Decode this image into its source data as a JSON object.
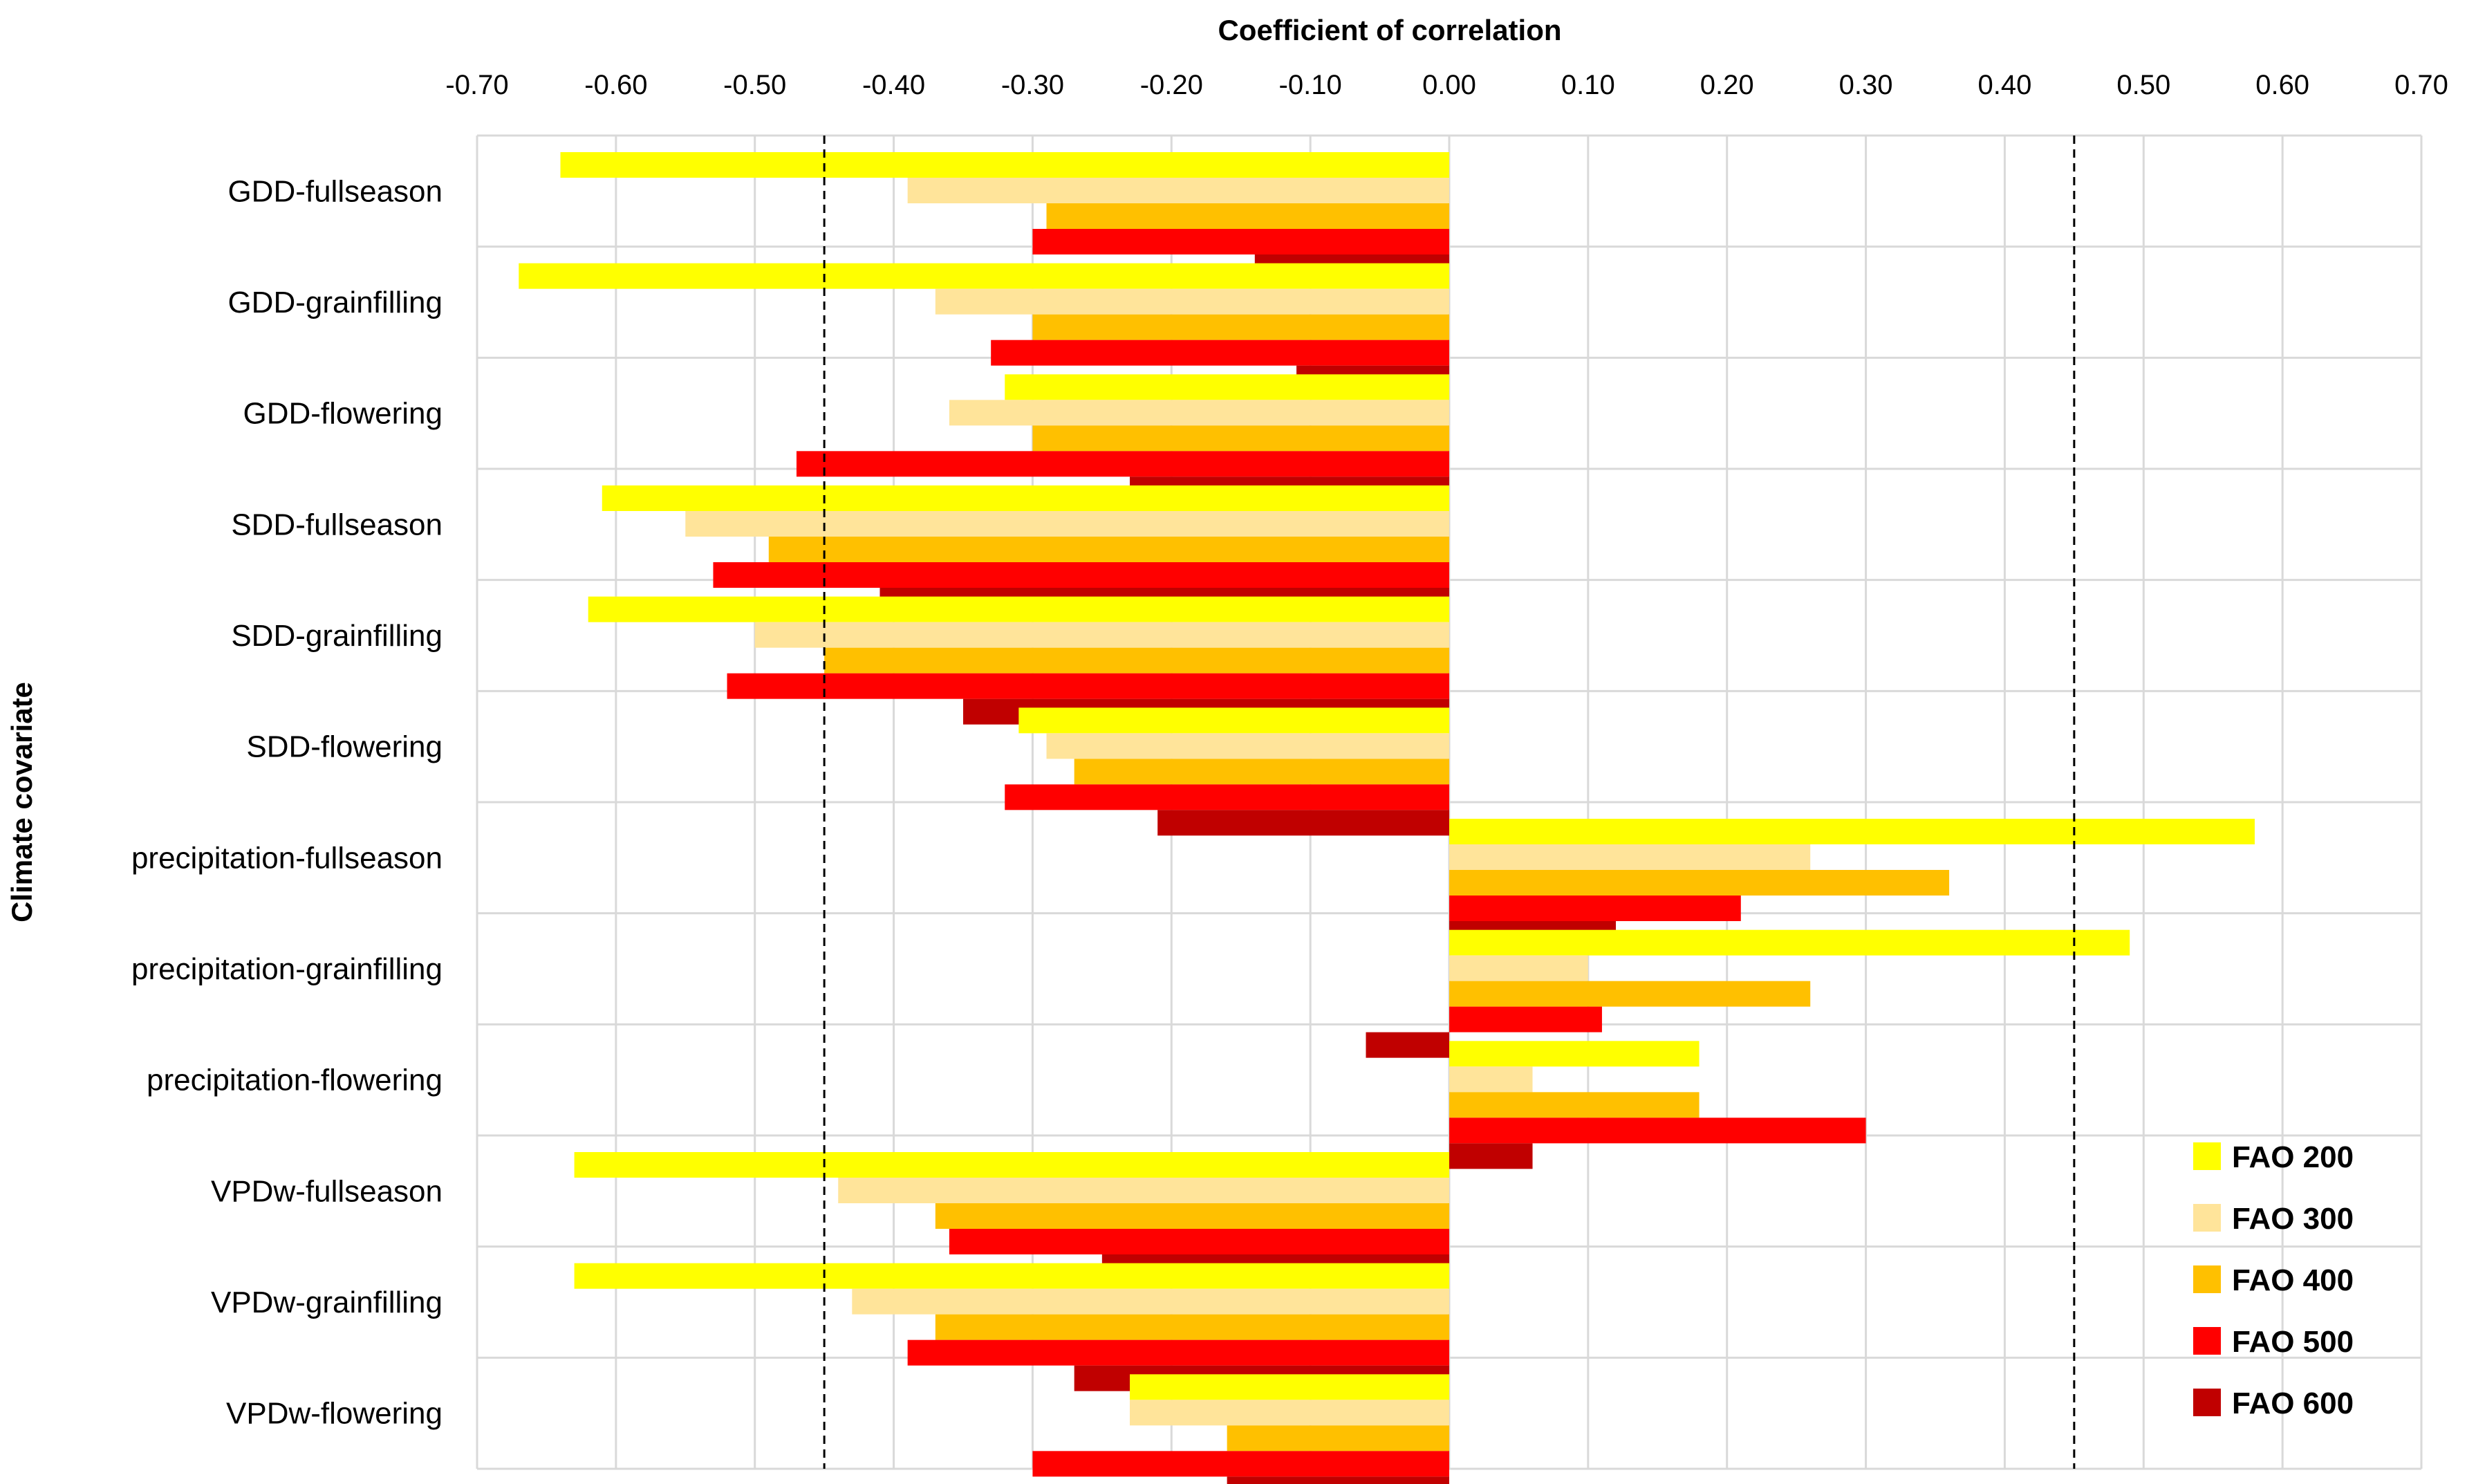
{
  "chart_data": {
    "type": "bar",
    "orientation": "horizontal",
    "title": "Coefficient of correlation",
    "xlabel": "Coefficient of correlation",
    "ylabel": "Climate covariate",
    "xlim": [
      -0.7,
      0.7
    ],
    "xticks": [
      "-0.70",
      "-0.60",
      "-0.50",
      "-0.40",
      "-0.30",
      "-0.20",
      "-0.10",
      "0.00",
      "0.10",
      "0.20",
      "0.30",
      "0.40",
      "0.50",
      "0.60",
      "0.70"
    ],
    "xtick_values": [
      -0.7,
      -0.6,
      -0.5,
      -0.4,
      -0.3,
      -0.2,
      -0.1,
      0.0,
      0.1,
      0.2,
      0.3,
      0.4,
      0.5,
      0.6,
      0.7
    ],
    "grid": true,
    "legend_position": "bottom-right",
    "reference_lines": [
      -0.45,
      0.45
    ],
    "categories": [
      "GDD-fullseason",
      "GDD-grainfilling",
      "GDD-flowering",
      "SDD-fullseason",
      "SDD-grainfilling",
      "SDD-flowering",
      "precipitation-fullseason",
      "precipitation-grainfilling",
      "precipitation-flowering",
      "VPDw-fullseason",
      "VPDw-grainfilling",
      "VPDw-flowering"
    ],
    "series": [
      {
        "name": "FAO 200",
        "color": "#FFFF00",
        "values": [
          -0.64,
          -0.67,
          -0.32,
          -0.61,
          -0.62,
          -0.31,
          0.58,
          0.49,
          0.18,
          -0.63,
          -0.63,
          -0.23
        ]
      },
      {
        "name": "FAO 300",
        "color": "#FFE49A",
        "values": [
          -0.39,
          -0.37,
          -0.36,
          -0.55,
          -0.5,
          -0.29,
          0.26,
          0.1,
          0.06,
          -0.44,
          -0.43,
          -0.23
        ]
      },
      {
        "name": "FAO 400",
        "color": "#FFC000",
        "values": [
          -0.29,
          -0.3,
          -0.3,
          -0.49,
          -0.45,
          -0.27,
          0.36,
          0.26,
          0.18,
          -0.37,
          -0.37,
          -0.16
        ]
      },
      {
        "name": "FAO 500",
        "color": "#FF0000",
        "values": [
          -0.3,
          -0.33,
          -0.47,
          -0.53,
          -0.52,
          -0.32,
          0.21,
          0.11,
          0.3,
          -0.36,
          -0.39,
          -0.3
        ]
      },
      {
        "name": "FAO 600",
        "color": "#C00000",
        "values": [
          -0.14,
          -0.11,
          -0.23,
          -0.41,
          -0.35,
          -0.21,
          0.12,
          -0.06,
          0.06,
          -0.25,
          -0.27,
          -0.16
        ]
      }
    ]
  }
}
